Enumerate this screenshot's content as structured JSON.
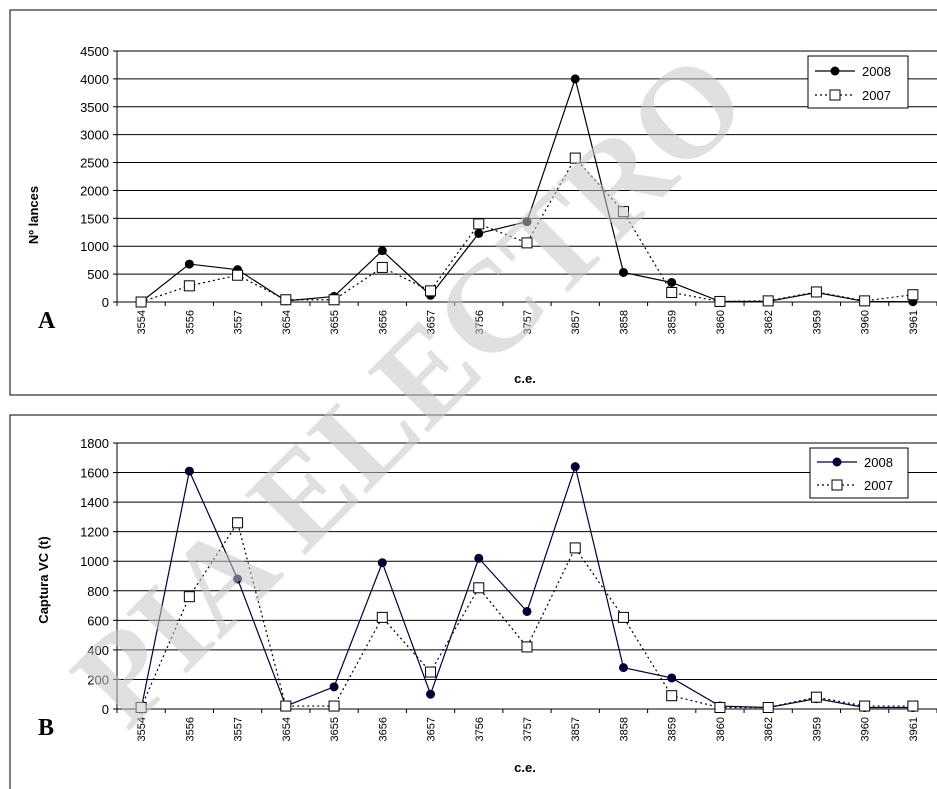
{
  "watermark": "PIA ELECTRO",
  "chart_data": [
    {
      "type": "line",
      "panel_label": "A",
      "ylabel": "Nº lances",
      "xlabel": "c.e.",
      "ylim": [
        0,
        4500
      ],
      "yticks": [
        0,
        500,
        1000,
        1500,
        2000,
        2500,
        3000,
        3500,
        4000,
        4500
      ],
      "grid": true,
      "legend_position": "top-right",
      "categories": [
        "3554",
        "3556",
        "3557",
        "3654",
        "3655",
        "3656",
        "3657",
        "3756",
        "3757",
        "3857",
        "3858",
        "3859",
        "3860",
        "3862",
        "3959",
        "3960",
        "3961"
      ],
      "series": [
        {
          "name": "2008",
          "style": "solid-filled-circle",
          "color": "#000000",
          "values": [
            0,
            680,
            580,
            20,
            100,
            920,
            120,
            1230,
            1440,
            4000,
            530,
            350,
            10,
            10,
            170,
            10,
            5
          ]
        },
        {
          "name": "2007",
          "style": "dotted-open-square",
          "color": "#000000",
          "values": [
            0,
            290,
            480,
            40,
            40,
            620,
            200,
            1400,
            1060,
            2580,
            1620,
            170,
            10,
            20,
            180,
            20,
            130
          ]
        }
      ]
    },
    {
      "type": "line",
      "panel_label": "B",
      "ylabel": "Captura VC (t)",
      "xlabel": "c.e.",
      "ylim": [
        0,
        1800
      ],
      "yticks": [
        0,
        200,
        400,
        600,
        800,
        1000,
        1200,
        1400,
        1600,
        1800
      ],
      "grid": true,
      "legend_position": "top-right",
      "categories": [
        "3554",
        "3556",
        "3557",
        "3654",
        "3655",
        "3656",
        "3657",
        "3756",
        "3757",
        "3857",
        "3858",
        "3859",
        "3860",
        "3862",
        "3959",
        "3960",
        "3961"
      ],
      "series": [
        {
          "name": "2008",
          "style": "solid-filled-circle",
          "color": "#000033",
          "values": [
            0,
            1610,
            880,
            20,
            150,
            990,
            100,
            1020,
            660,
            1640,
            280,
            210,
            20,
            10,
            70,
            10,
            10
          ]
        },
        {
          "name": "2007",
          "style": "dotted-open-square",
          "color": "#000000",
          "values": [
            10,
            760,
            1260,
            20,
            20,
            620,
            250,
            820,
            420,
            1090,
            620,
            90,
            10,
            10,
            80,
            20,
            20
          ]
        }
      ]
    }
  ]
}
